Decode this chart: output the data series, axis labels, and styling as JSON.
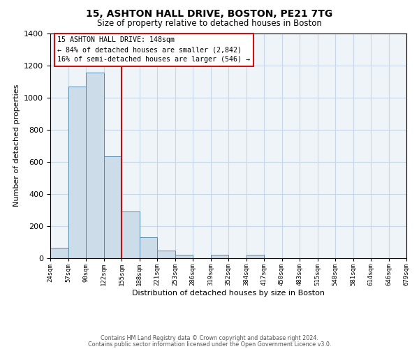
{
  "title": "15, ASHTON HALL DRIVE, BOSTON, PE21 7TG",
  "subtitle": "Size of property relative to detached houses in Boston",
  "bar_values": [
    65,
    1070,
    1155,
    635,
    290,
    130,
    48,
    22,
    0,
    20,
    0,
    20,
    0,
    0,
    0,
    0,
    0,
    0,
    0,
    0
  ],
  "categories": [
    "24sqm",
    "57sqm",
    "90sqm",
    "122sqm",
    "155sqm",
    "188sqm",
    "221sqm",
    "253sqm",
    "286sqm",
    "319sqm",
    "352sqm",
    "384sqm",
    "417sqm",
    "450sqm",
    "483sqm",
    "515sqm",
    "548sqm",
    "581sqm",
    "614sqm",
    "646sqm",
    "679sqm"
  ],
  "bar_color": "#ccdde9",
  "bar_edge_color": "#5588aa",
  "xlabel": "Distribution of detached houses by size in Boston",
  "ylabel": "Number of detached properties",
  "ylim": [
    0,
    1400
  ],
  "yticks": [
    0,
    200,
    400,
    600,
    800,
    1000,
    1200,
    1400
  ],
  "vline_x": 4,
  "vline_color": "#bb1111",
  "annotation_title": "15 ASHTON HALL DRIVE: 148sqm",
  "annotation_line1": "← 84% of detached houses are smaller (2,842)",
  "annotation_line2": "16% of semi-detached houses are larger (546) →",
  "annotation_box_color": "#cc1111",
  "footer1": "Contains HM Land Registry data © Crown copyright and database right 2024.",
  "footer2": "Contains public sector information licensed under the Open Government Licence v3.0.",
  "grid_color": "#c8d8e8",
  "background_color": "#eef4f8"
}
